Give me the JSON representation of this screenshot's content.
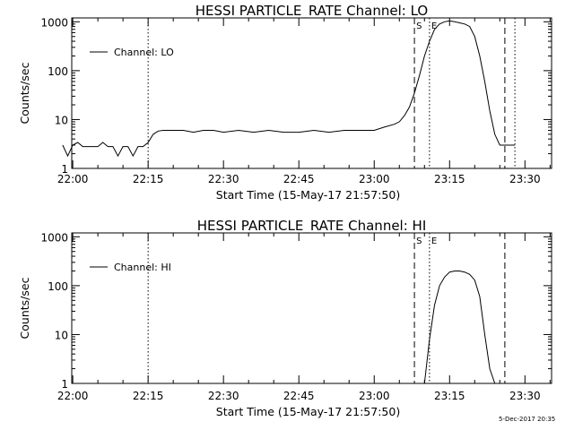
{
  "footer": {
    "stamp": "5-Dec-2017 20:35"
  },
  "chart_data": [
    {
      "type": "line",
      "title": "HESSI PARTICLE_RATE Channel: LO",
      "xlabel": "Start Time (15-May-17 21:57:50)",
      "ylabel": "Counts/sec",
      "yscale": "log",
      "ylim": [
        1,
        1200
      ],
      "xlim_minutes": [
        -0.2,
        95.3
      ],
      "yticks": [
        1,
        10,
        100,
        1000
      ],
      "ytick_labels": [
        "1",
        "10",
        "100",
        "1000"
      ],
      "xticks": [
        0,
        15,
        30,
        45,
        60,
        75,
        90
      ],
      "xtick_labels": [
        "22:00",
        "22:15",
        "22:30",
        "22:45",
        "23:00",
        "23:15",
        "23:30"
      ],
      "legend": {
        "label": "Channel: LO",
        "position": "top-left"
      },
      "markers": [
        {
          "type": "dashed",
          "time": "23:08",
          "label": "S"
        },
        {
          "type": "dotted",
          "time": "23:11",
          "label": "E"
        },
        {
          "type": "dashed",
          "time": "23:26",
          "label": ""
        },
        {
          "type": "dotted",
          "time": "23:28",
          "label": ""
        },
        {
          "type": "dotted",
          "time": "22:15",
          "label": ""
        }
      ],
      "series": [
        {
          "name": "Channel: LO",
          "x": [
            "21:58",
            "21:59",
            "22:00",
            "22:01",
            "22:02",
            "22:03",
            "22:04",
            "22:05",
            "22:06",
            "22:07",
            "22:08",
            "22:09",
            "22:10",
            "22:11",
            "22:12",
            "22:13",
            "22:14",
            "22:15",
            "22:16",
            "22:17",
            "22:18",
            "22:20",
            "22:22",
            "22:24",
            "22:26",
            "22:28",
            "22:30",
            "22:33",
            "22:36",
            "22:39",
            "22:42",
            "22:45",
            "22:48",
            "22:51",
            "22:54",
            "22:57",
            "23:00",
            "23:02",
            "23:04",
            "23:05",
            "23:06",
            "23:07",
            "23:08",
            "23:09",
            "23:10",
            "23:11",
            "23:12",
            "23:13",
            "23:14",
            "23:15",
            "23:16",
            "23:17",
            "23:18",
            "23:19",
            "23:20",
            "23:21",
            "23:22",
            "23:23",
            "23:24",
            "23:25",
            "23:26",
            "23:27",
            "23:28"
          ],
          "y": [
            3,
            1.8,
            3,
            3.4,
            2.8,
            2.8,
            2.8,
            2.8,
            3.4,
            2.8,
            2.8,
            1.8,
            2.8,
            2.8,
            1.8,
            2.8,
            2.8,
            3.4,
            5,
            5.8,
            6,
            6,
            6,
            5.5,
            6,
            6,
            5.5,
            6,
            5.5,
            6,
            5.5,
            5.5,
            6,
            5.5,
            6,
            6,
            6,
            7,
            8,
            9,
            12,
            18,
            35,
            80,
            200,
            400,
            700,
            900,
            1000,
            1050,
            1000,
            950,
            900,
            800,
            500,
            200,
            60,
            15,
            5,
            3,
            3,
            3,
            3
          ]
        }
      ]
    },
    {
      "type": "line",
      "title": "HESSI PARTICLE_RATE Channel: HI",
      "xlabel": "Start Time (15-May-17 21:57:50)",
      "ylabel": "Counts/sec",
      "yscale": "log",
      "ylim": [
        1,
        1200
      ],
      "xlim_minutes": [
        -0.2,
        95.3
      ],
      "yticks": [
        1,
        10,
        100,
        1000
      ],
      "ytick_labels": [
        "1",
        "10",
        "100",
        "1000"
      ],
      "xticks": [
        0,
        15,
        30,
        45,
        60,
        75,
        90
      ],
      "xtick_labels": [
        "22:00",
        "22:15",
        "22:30",
        "22:45",
        "23:00",
        "23:15",
        "23:30"
      ],
      "legend": {
        "label": "Channel: HI",
        "position": "top-left"
      },
      "markers": [
        {
          "type": "dashed",
          "time": "23:08",
          "label": "S"
        },
        {
          "type": "dotted",
          "time": "23:11",
          "label": "E"
        },
        {
          "type": "dashed",
          "time": "23:26",
          "label": ""
        },
        {
          "type": "dotted",
          "time": "22:15",
          "label": ""
        }
      ],
      "series": [
        {
          "name": "Channel: HI",
          "x": [
            "23:10",
            "23:11",
            "23:12",
            "23:13",
            "23:14",
            "23:15",
            "23:16",
            "23:17",
            "23:18",
            "23:19",
            "23:20",
            "23:21",
            "23:22",
            "23:23",
            "23:24"
          ],
          "y": [
            1,
            8,
            40,
            100,
            150,
            190,
            200,
            200,
            190,
            170,
            130,
            60,
            10,
            2,
            1
          ]
        }
      ]
    }
  ]
}
